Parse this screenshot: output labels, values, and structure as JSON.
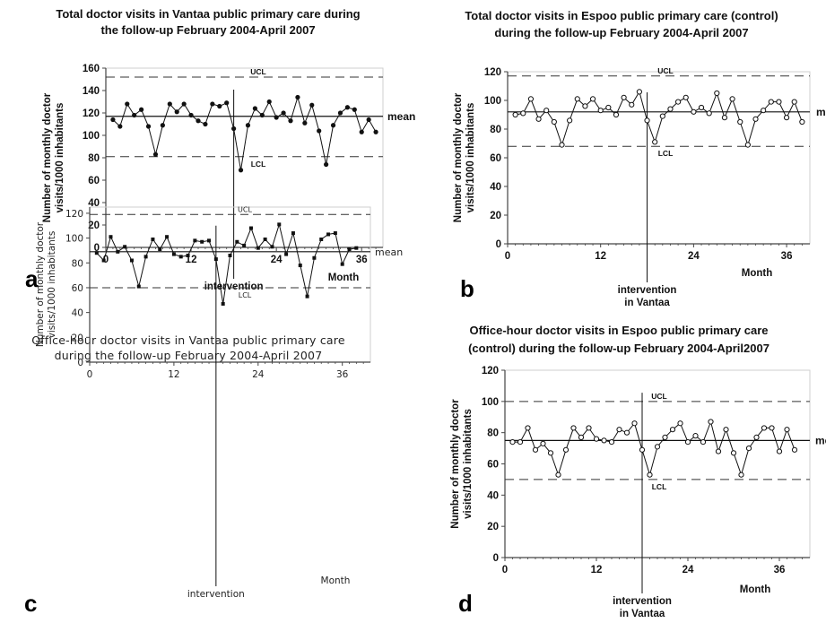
{
  "chart_data": [
    {
      "type": "line",
      "panel": "a",
      "title_lines": [
        "Total doctor visits in Vantaa public primary care during",
        "the follow-up February 2004-April 2007"
      ],
      "ylabel_lines": [
        "Number of monthly doctor",
        "visits/1000 inhabitants"
      ],
      "xlabel": "Month",
      "xticks": [
        0,
        12,
        24,
        36
      ],
      "yticks": [
        0,
        20,
        40,
        60,
        80,
        100,
        120,
        140,
        160
      ],
      "xlim": [
        0,
        39
      ],
      "ylim": [
        0,
        160
      ],
      "marker": "filled",
      "x": [
        1,
        2,
        3,
        4,
        5,
        6,
        7,
        8,
        9,
        10,
        11,
        12,
        13,
        14,
        15,
        16,
        17,
        18,
        19,
        20,
        21,
        22,
        23,
        24,
        25,
        26,
        27,
        28,
        29,
        30,
        31,
        32,
        33,
        34,
        35,
        36,
        37,
        38
      ],
      "y": [
        114,
        108,
        128,
        118,
        123,
        108,
        83,
        109,
        128,
        121,
        128,
        118,
        113,
        110,
        128,
        126,
        129,
        106,
        69,
        109,
        124,
        118,
        130,
        116,
        120,
        113,
        134,
        111,
        127,
        104,
        74,
        109,
        120,
        125,
        123,
        103,
        114,
        103
      ],
      "mean": 117,
      "mean_label": "mean",
      "ucl": 152,
      "ucl_label": "UCL",
      "lcl": 81,
      "lcl_label": "LCL",
      "intervention_x": 18,
      "intervention_lines": [
        "intervention"
      ]
    },
    {
      "type": "line",
      "panel": "b",
      "title_lines": [
        "Total doctor visits in Espoo public primary care (control)",
        "during the follow-up February 2004-April 2007"
      ],
      "ylabel_lines": [
        "Number of monthly doctor",
        "visits/1000 inhabitants"
      ],
      "xlabel": "Month",
      "xticks": [
        0,
        12,
        24,
        36
      ],
      "yticks": [
        0,
        20,
        40,
        60,
        80,
        100,
        120
      ],
      "xlim": [
        0,
        39
      ],
      "ylim": [
        0,
        120
      ],
      "marker": "open",
      "x": [
        1,
        2,
        3,
        4,
        5,
        6,
        7,
        8,
        9,
        10,
        11,
        12,
        13,
        14,
        15,
        16,
        17,
        18,
        19,
        20,
        21,
        22,
        23,
        24,
        25,
        26,
        27,
        28,
        29,
        30,
        31,
        32,
        33,
        34,
        35,
        36,
        37,
        38
      ],
      "y": [
        90,
        91,
        101,
        87,
        93,
        85,
        69,
        86,
        101,
        96,
        101,
        93,
        95,
        90,
        102,
        97,
        106,
        86,
        71,
        89,
        94,
        99,
        102,
        92,
        95,
        91,
        105,
        88,
        101,
        85,
        69,
        87,
        93,
        99,
        99,
        88,
        99,
        85
      ],
      "mean": 92,
      "mean_label": "mean",
      "ucl": 117,
      "ucl_label": "UCL",
      "lcl": 68,
      "lcl_label": "LCL",
      "intervention_x": 18,
      "intervention_lines": [
        "intervention",
        "in Vantaa"
      ]
    },
    {
      "type": "line",
      "panel": "c",
      "title_lines": [
        "Office-hour doctor visits in Vantaa public primary care",
        "during the follow-up February 2004-April 2007"
      ],
      "ylabel_lines": [
        "Number of monthly doctor",
        "visits/1000 inhabitants"
      ],
      "xlabel": "Month",
      "xticks": [
        0,
        12,
        24,
        36
      ],
      "yticks": [
        0,
        20,
        40,
        60,
        80,
        100,
        120
      ],
      "xlim": [
        0,
        40
      ],
      "ylim": [
        0,
        125
      ],
      "marker": "filled-square",
      "x": [
        1,
        2,
        3,
        4,
        5,
        6,
        7,
        8,
        9,
        10,
        11,
        12,
        13,
        14,
        15,
        16,
        17,
        18,
        19,
        20,
        21,
        22,
        23,
        24,
        25,
        26,
        27,
        28,
        29,
        30,
        31,
        32,
        33,
        34,
        35,
        36,
        37,
        38
      ],
      "y": [
        88,
        82,
        101,
        89,
        93,
        82,
        61,
        85,
        99,
        91,
        101,
        87,
        85,
        86,
        98,
        97,
        98,
        83,
        47,
        86,
        97,
        94,
        108,
        92,
        99,
        93,
        111,
        87,
        104,
        78,
        53,
        84,
        99,
        103,
        104,
        79,
        91,
        92
      ],
      "mean": 89,
      "mean_label": "mean",
      "ucl": 119,
      "ucl_label": "UCL",
      "lcl": 60,
      "lcl_label": "LCL",
      "intervention_x": 18,
      "intervention_lines": [
        "intervention"
      ]
    },
    {
      "type": "line",
      "panel": "d",
      "title_lines": [
        "Office-hour doctor visits in Espoo public primary care",
        "(control) during the follow-up February 2004-April2007"
      ],
      "ylabel_lines": [
        "Number of monthly doctor",
        "visits/1000 inhabitants"
      ],
      "xlabel": "Month",
      "xticks": [
        0,
        12,
        24,
        36
      ],
      "yticks": [
        0,
        20,
        40,
        60,
        80,
        100,
        120
      ],
      "xlim": [
        0,
        40
      ],
      "ylim": [
        0,
        120
      ],
      "marker": "open",
      "x": [
        1,
        2,
        3,
        4,
        5,
        6,
        7,
        8,
        9,
        10,
        11,
        12,
        13,
        14,
        15,
        16,
        17,
        18,
        19,
        20,
        21,
        22,
        23,
        24,
        25,
        26,
        27,
        28,
        29,
        30,
        31,
        32,
        33,
        34,
        35,
        36,
        37,
        38
      ],
      "y": [
        74,
        74,
        83,
        69,
        73,
        67,
        53,
        69,
        83,
        77,
        83,
        76,
        75,
        74,
        82,
        80,
        86,
        69,
        53,
        71,
        77,
        82,
        86,
        74,
        78,
        74,
        87,
        68,
        82,
        67,
        53,
        70,
        77,
        83,
        83,
        68,
        82,
        69
      ],
      "mean": 75,
      "mean_label": "mean",
      "ucl": 100,
      "ucl_label": "UCL",
      "lcl": 50,
      "lcl_label": "LCL",
      "intervention_x": 18,
      "intervention_lines": [
        "intervention",
        "in Vantaa"
      ]
    }
  ]
}
